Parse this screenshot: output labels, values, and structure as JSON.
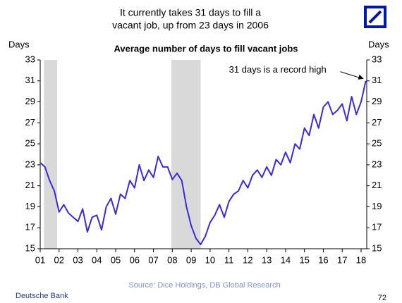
{
  "chart_data": {
    "type": "line",
    "title": [
      "It currently takes 31 days to fill a",
      "vacant job, up from 23 days in 2006"
    ],
    "subtitle": "Average number of days to fill vacant jobs",
    "ylabel": "Days",
    "y2label": "Days",
    "annotation": "31 days is a record high",
    "source": "Source: Dice Holdings, DB Global Research",
    "footer": "Deutsche Bank",
    "page_number": "72",
    "color": "#3b2ad8",
    "shade_color": "#d9d9d9",
    "shaded_periods": [
      [
        2001.2,
        2001.9
      ],
      [
        2007.95,
        2009.5
      ]
    ],
    "xlim": [
      2001,
      2018.3
    ],
    "xticks": [
      {
        "value": 2001,
        "label": "01"
      },
      {
        "value": 2002,
        "label": "02"
      },
      {
        "value": 2003,
        "label": "03"
      },
      {
        "value": 2004,
        "label": "04"
      },
      {
        "value": 2005,
        "label": "05"
      },
      {
        "value": 2006,
        "label": "06"
      },
      {
        "value": 2007,
        "label": "07"
      },
      {
        "value": 2008,
        "label": "08"
      },
      {
        "value": 2009,
        "label": "09"
      },
      {
        "value": 2010,
        "label": "10"
      },
      {
        "value": 2011,
        "label": "11"
      },
      {
        "value": 2012,
        "label": "12"
      },
      {
        "value": 2013,
        "label": "13"
      },
      {
        "value": 2014,
        "label": "14"
      },
      {
        "value": 2015,
        "label": "15"
      },
      {
        "value": 2016,
        "label": "16"
      },
      {
        "value": 2017,
        "label": "17"
      },
      {
        "value": 2018,
        "label": "18"
      }
    ],
    "ylim": [
      15,
      33
    ],
    "yticks": [
      15,
      17,
      19,
      21,
      23,
      25,
      27,
      29,
      31,
      33
    ],
    "x": [
      2001,
      2001.25,
      2001.5,
      2001.75,
      2002,
      2002.25,
      2002.5,
      2002.75,
      2003,
      2003.25,
      2003.5,
      2003.75,
      2004,
      2004.25,
      2004.5,
      2004.75,
      2005,
      2005.25,
      2005.5,
      2005.75,
      2006,
      2006.25,
      2006.5,
      2006.75,
      2007,
      2007.25,
      2007.5,
      2007.75,
      2008,
      2008.25,
      2008.5,
      2008.75,
      2009,
      2009.25,
      2009.5,
      2009.75,
      2010,
      2010.25,
      2010.5,
      2010.75,
      2011,
      2011.25,
      2011.5,
      2011.75,
      2012,
      2012.25,
      2012.5,
      2012.75,
      2013,
      2013.25,
      2013.5,
      2013.75,
      2014,
      2014.25,
      2014.5,
      2014.75,
      2015,
      2015.25,
      2015.5,
      2015.75,
      2016,
      2016.25,
      2016.5,
      2016.75,
      2017,
      2017.25,
      2017.5,
      2017.75,
      2018,
      2018.25
    ],
    "values": [
      23.2,
      22.8,
      21.5,
      20.5,
      18.5,
      19.2,
      18.4,
      18.0,
      17.6,
      18.8,
      16.6,
      18.0,
      18.2,
      16.8,
      19.0,
      19.8,
      18.3,
      20.2,
      19.8,
      21.5,
      20.8,
      23.0,
      21.5,
      22.5,
      21.8,
      23.8,
      22.8,
      22.8,
      21.6,
      22.2,
      21.5,
      19.0,
      17.2,
      16.0,
      15.4,
      16.2,
      17.5,
      18.2,
      19.2,
      18.0,
      19.5,
      20.2,
      20.5,
      21.5,
      20.8,
      22.0,
      22.5,
      21.8,
      22.8,
      22.0,
      23.5,
      23.0,
      24.2,
      23.2,
      25.0,
      24.5,
      26.5,
      25.8,
      27.8,
      26.5,
      28.5,
      29.0,
      27.8,
      28.2,
      28.8,
      27.2,
      29.5,
      27.8,
      29.0,
      31.0
    ]
  }
}
